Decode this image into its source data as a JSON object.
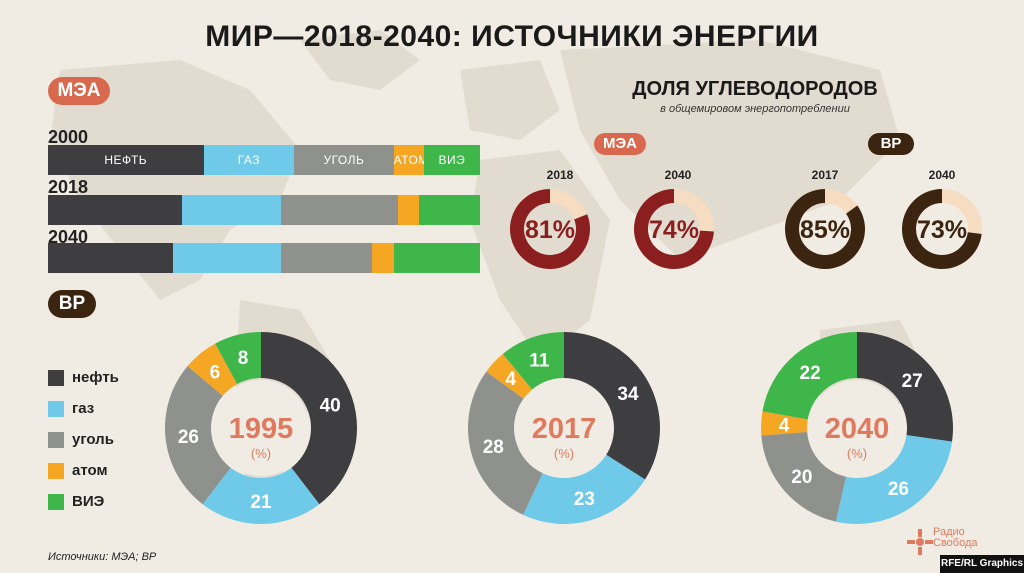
{
  "title": "МИР—2018-2040: ИСТОЧНИКИ ЭНЕРГИИ",
  "colors": {
    "нефть": "#3e3e40",
    "газ": "#6ecae8",
    "уголь": "#8f918c",
    "атом": "#f5a623",
    "ВИЭ": "#3fb649",
    "iea_badge": "#d9694e",
    "bp_badge": "#3b2410",
    "iea_donut": "#8b1f1f",
    "bp_donut": "#3b2410",
    "donut_rest": "#f6dcc0",
    "center_text": "#e07a5f"
  },
  "iea": {
    "badge": "МЭА",
    "categories": [
      "НЕФТЬ",
      "ГАЗ",
      "УГОЛЬ",
      "АТОМ",
      "ВИЭ"
    ],
    "rows": [
      {
        "year": "2000",
        "shares": [
          36,
          21,
          23,
          7,
          13
        ]
      },
      {
        "year": "2018",
        "shares": [
          31,
          23,
          27,
          5,
          14
        ]
      },
      {
        "year": "2040",
        "shares": [
          29,
          25,
          21,
          5,
          20
        ]
      }
    ]
  },
  "hydrocarbons": {
    "title": "ДОЛЯ УГЛЕВОДОРОДОВ",
    "subtitle": "в общемировом энергопотреблении",
    "iea_badge": "МЭА",
    "bp_badge": "BP",
    "iea": [
      {
        "year": "2018",
        "value": 81,
        "label": "81%"
      },
      {
        "year": "2040",
        "value": 74,
        "label": "74%"
      }
    ],
    "bp": [
      {
        "year": "2017",
        "value": 85,
        "label": "85%"
      },
      {
        "year": "2040",
        "value": 73,
        "label": "73%"
      }
    ]
  },
  "bp": {
    "badge": "BP",
    "legend": [
      "нефть",
      "газ",
      "уголь",
      "атом",
      "ВИЭ"
    ]
  },
  "chart_data": [
    {
      "type": "bar",
      "orientation": "horizontal-stacked",
      "categories": [
        "2000",
        "2018",
        "2040"
      ],
      "series": [
        {
          "name": "НЕФТЬ",
          "values": [
            36,
            31,
            29
          ]
        },
        {
          "name": "ГАЗ",
          "values": [
            21,
            23,
            25
          ]
        },
        {
          "name": "УГОЛЬ",
          "values": [
            23,
            27,
            21
          ]
        },
        {
          "name": "АТОМ",
          "values": [
            7,
            5,
            5
          ]
        },
        {
          "name": "ВИЭ",
          "values": [
            13,
            14,
            20
          ]
        }
      ]
    },
    {
      "type": "pie",
      "title": "1995",
      "subtitle": "(%)",
      "categories": [
        "нефть",
        "газ",
        "уголь",
        "атом",
        "ВИЭ"
      ],
      "values": [
        40,
        21,
        26,
        6,
        8
      ],
      "labels": [
        "40",
        "21",
        "26",
        "6",
        "8"
      ]
    },
    {
      "type": "pie",
      "title": "2017",
      "subtitle": "(%)",
      "categories": [
        "нефть",
        "газ",
        "уголь",
        "атом",
        "ВИЭ"
      ],
      "values": [
        34,
        23,
        28,
        4,
        11
      ],
      "labels": [
        "34",
        "23",
        "28",
        "4",
        "11"
      ]
    },
    {
      "type": "pie",
      "title": "2040",
      "subtitle": "(%)",
      "categories": [
        "нефть",
        "газ",
        "уголь",
        "атом",
        "ВИЭ"
      ],
      "values": [
        27,
        26,
        20,
        4,
        22
      ],
      "labels": [
        "27",
        "26",
        "20",
        "4",
        "22"
      ]
    }
  ],
  "source": "Источники: МЭА; BP",
  "credit": "RFE/RL Graphics",
  "logo": {
    "line1": "Радио",
    "line2": "Свобода"
  }
}
